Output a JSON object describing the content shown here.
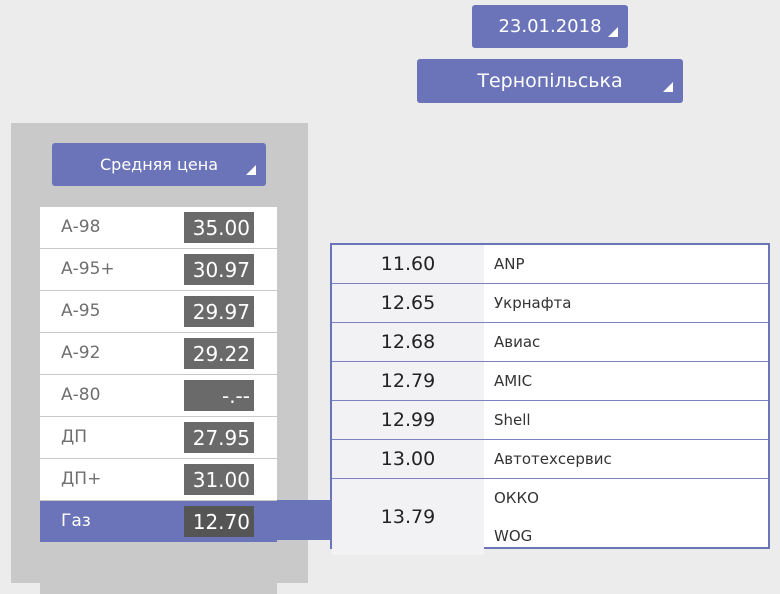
{
  "date_selector": {
    "value": "23.01.2018"
  },
  "region_selector": {
    "value": "Тернопільська"
  },
  "price_mode_selector": {
    "value": "Средняя цена"
  },
  "fuels": [
    {
      "name": "А-98",
      "price": "35.00"
    },
    {
      "name": "А-95+",
      "price": "30.97"
    },
    {
      "name": "А-95",
      "price": "29.97"
    },
    {
      "name": "А-92",
      "price": "29.22"
    },
    {
      "name": "А-80",
      "price": "-.--"
    },
    {
      "name": "ДП",
      "price": "27.95"
    },
    {
      "name": "ДП+",
      "price": "31.00"
    },
    {
      "name": "Газ",
      "price": "12.70"
    }
  ],
  "selected_fuel": "Газ",
  "station_prices": [
    {
      "price": "11.60",
      "brands": [
        "ANP"
      ]
    },
    {
      "price": "12.65",
      "brands": [
        "Укрнафта"
      ]
    },
    {
      "price": "12.68",
      "brands": [
        "Авиас"
      ]
    },
    {
      "price": "12.79",
      "brands": [
        "AMIC"
      ]
    },
    {
      "price": "12.99",
      "brands": [
        "Shell"
      ]
    },
    {
      "price": "13.00",
      "brands": [
        "Автотехсервис"
      ]
    },
    {
      "price": "13.79",
      "brands": [
        "ОККО",
        "WOG"
      ]
    }
  ],
  "colors": {
    "accent": "#6b74b9",
    "panel": "#c9c9c9",
    "price_box": "#6a6a6a"
  }
}
